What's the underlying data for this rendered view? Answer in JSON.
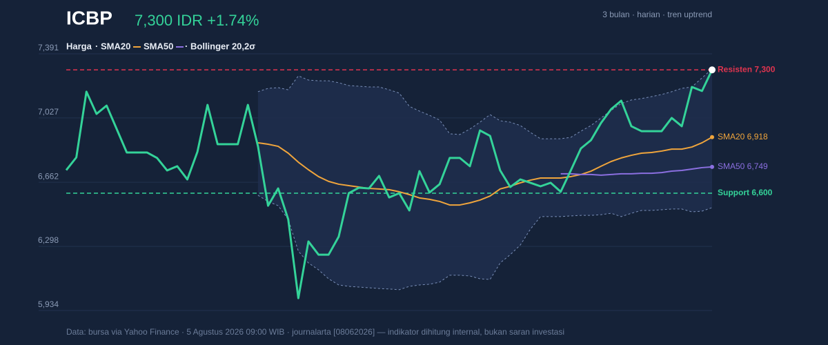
{
  "chart_data": {
    "type": "line",
    "title": "ICBP",
    "subtitle": "7,300 IDR +1.74%",
    "note": "3 bulan · harian · tren uptrend",
    "footer": "Data: bursa via Yahoo Finance · 5 Agustus 2026 09:00 WIB · journalarta [08062026] — indikator dihitung internal, bukan saran investasi",
    "ylim": [
      5934,
      7391
    ],
    "yticks": [
      {
        "value": 5934,
        "label": "5,934"
      },
      {
        "value": 6298,
        "label": "6,298"
      },
      {
        "value": 6662,
        "label": "6,662"
      },
      {
        "value": 7027,
        "label": "7,027"
      },
      {
        "value": 7391,
        "label": "7,391"
      }
    ],
    "grid": true,
    "categories": [
      null,
      null,
      null,
      null,
      null,
      null,
      null,
      null,
      null,
      null,
      null,
      null,
      null,
      null,
      null,
      null,
      null,
      null,
      null,
      null,
      null,
      null,
      null,
      null,
      null,
      null,
      null,
      null,
      null,
      null,
      null,
      null,
      null,
      null,
      null,
      null,
      null,
      null,
      null,
      null,
      null,
      null,
      null,
      null,
      null,
      null,
      null,
      null,
      null,
      null,
      null,
      null,
      null,
      null,
      null,
      null,
      null,
      null,
      null,
      null,
      null,
      null,
      null,
      null,
      null
    ],
    "series": [
      {
        "name": "Harga",
        "color": "#34d399",
        "values": [
          6731,
          6803,
          7176,
          7050,
          7097,
          6964,
          6831,
          6831,
          6831,
          6800,
          6729,
          6753,
          6678,
          6835,
          7101,
          6878,
          6878,
          6878,
          7101,
          6866,
          6529,
          6627,
          6451,
          6004,
          6326,
          6251,
          6251,
          6353,
          6600,
          6631,
          6627,
          6698,
          6576,
          6600,
          6502,
          6725,
          6604,
          6651,
          6800,
          6800,
          6753,
          6956,
          6925,
          6729,
          6635,
          6678,
          6659,
          6639,
          6659,
          6608,
          6729,
          6854,
          6901,
          6999,
          7077,
          7125,
          6980,
          6952,
          6952,
          6952,
          7027,
          6980,
          7203,
          7180,
          7300
        ]
      },
      {
        "name": "SMA20",
        "color": "#f0a53c",
        "end_label": "SMA20 6,918",
        "values": [
          null,
          null,
          null,
          null,
          null,
          null,
          null,
          null,
          null,
          null,
          null,
          null,
          null,
          null,
          null,
          null,
          null,
          null,
          null,
          6886,
          6878,
          6866,
          6827,
          6776,
          6733,
          6694,
          6667,
          6651,
          6643,
          6635,
          6627,
          6624,
          6620,
          6608,
          6592,
          6573,
          6565,
          6553,
          6533,
          6533,
          6545,
          6561,
          6584,
          6624,
          6639,
          6659,
          6674,
          6686,
          6686,
          6686,
          6694,
          6706,
          6725,
          6753,
          6780,
          6800,
          6815,
          6827,
          6831,
          6839,
          6850,
          6850,
          6862,
          6886,
          6918
        ]
      },
      {
        "name": "SMA50",
        "color": "#8b6fe0",
        "end_label": "SMA50 6,749",
        "values": [
          null,
          null,
          null,
          null,
          null,
          null,
          null,
          null,
          null,
          null,
          null,
          null,
          null,
          null,
          null,
          null,
          null,
          null,
          null,
          null,
          null,
          null,
          null,
          null,
          null,
          null,
          null,
          null,
          null,
          null,
          null,
          null,
          null,
          null,
          null,
          null,
          null,
          null,
          null,
          null,
          null,
          null,
          null,
          null,
          null,
          null,
          null,
          null,
          null,
          6710,
          6710,
          6706,
          6706,
          6702,
          6706,
          6710,
          6710,
          6713,
          6713,
          6717,
          6725,
          6729,
          6737,
          6745,
          6749
        ]
      }
    ],
    "band": {
      "name": "Bollinger 20,2σ",
      "color": "#7a8fb8",
      "upper": [
        null,
        null,
        null,
        null,
        null,
        null,
        null,
        null,
        null,
        null,
        null,
        null,
        null,
        null,
        null,
        null,
        null,
        null,
        null,
        7176,
        7195,
        7199,
        7187,
        7266,
        7242,
        7238,
        7238,
        7227,
        7211,
        7207,
        7203,
        7203,
        7187,
        7168,
        7093,
        7066,
        7042,
        7015,
        6937,
        6933,
        6964,
        7003,
        7046,
        7011,
        7003,
        6984,
        6945,
        6909,
        6909,
        6909,
        6917,
        6952,
        6984,
        7027,
        7070,
        7109,
        7129,
        7137,
        7148,
        7160,
        7176,
        7195,
        7203,
        7254,
        7305
      ],
      "lower": [
        null,
        null,
        null,
        null,
        null,
        null,
        null,
        null,
        null,
        null,
        null,
        null,
        null,
        null,
        null,
        null,
        null,
        null,
        null,
        6588,
        6553,
        6529,
        6451,
        6271,
        6204,
        6165,
        6114,
        6079,
        6071,
        6067,
        6063,
        6059,
        6056,
        6052,
        6071,
        6079,
        6083,
        6095,
        6134,
        6134,
        6130,
        6114,
        6110,
        6204,
        6251,
        6306,
        6396,
        6467,
        6467,
        6467,
        6471,
        6474,
        6474,
        6478,
        6486,
        6467,
        6486,
        6502,
        6502,
        6506,
        6510,
        6510,
        6494,
        6498,
        6518
      ]
    },
    "reference_lines": [
      {
        "value": 7300,
        "label": "Resisten 7,300",
        "color": "#e0344f"
      },
      {
        "value": 6600,
        "label": "Support 6,600",
        "color": "#34d399"
      }
    ]
  }
}
